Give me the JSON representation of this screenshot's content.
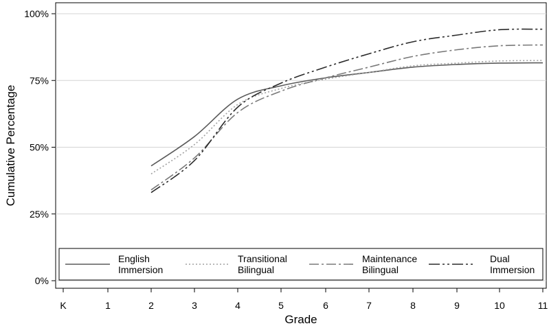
{
  "chart_data": {
    "type": "line",
    "xlabel": "Grade",
    "ylabel": "Cumulative Percentage",
    "x_categories": [
      "K",
      "1",
      "2",
      "3",
      "4",
      "5",
      "6",
      "7",
      "8",
      "9",
      "10",
      "11"
    ],
    "y_ticks": [
      0,
      25,
      50,
      75,
      100
    ],
    "y_tick_labels": [
      "0%",
      "25%",
      "50%",
      "75%",
      "100%"
    ],
    "ylim": [
      0,
      100
    ],
    "grid": "horizontal",
    "legend_position": "bottom-inside",
    "series": [
      {
        "name_lines": [
          "English",
          "Immersion"
        ],
        "color": "#5a5a5a",
        "dash": "solid",
        "x": [
          "2",
          "3",
          "4",
          "5",
          "6",
          "7",
          "8",
          "9",
          "10",
          "11"
        ],
        "values": [
          43,
          54,
          68,
          73,
          76,
          78,
          80,
          81,
          81.5,
          81.6
        ]
      },
      {
        "name_lines": [
          "Transitional",
          "Bilingual"
        ],
        "color": "#a0a0a0",
        "dash": "dotted",
        "x": [
          "2",
          "3",
          "4",
          "5",
          "6",
          "7",
          "8",
          "9",
          "10",
          "11"
        ],
        "values": [
          40,
          51,
          66,
          72,
          75.5,
          78,
          80.5,
          81.5,
          82.3,
          82.5
        ]
      },
      {
        "name_lines": [
          "Maintenance",
          "Bilingual"
        ],
        "color": "#787878",
        "dash": "dash-dot",
        "x": [
          "2",
          "3",
          "4",
          "5",
          "6",
          "7",
          "8",
          "9",
          "10",
          "11"
        ],
        "values": [
          34,
          46,
          63,
          71,
          76,
          80,
          84,
          86.5,
          88,
          88.3
        ]
      },
      {
        "name_lines": [
          "Dual",
          "Immersion"
        ],
        "color": "#2a2a2a",
        "dash": "long-dash-dot-dot",
        "x": [
          "2",
          "3",
          "4",
          "5",
          "6",
          "7",
          "8",
          "9",
          "10",
          "11"
        ],
        "values": [
          33,
          45,
          65,
          74,
          80,
          85,
          89.5,
          92,
          94,
          94.2
        ]
      }
    ]
  }
}
